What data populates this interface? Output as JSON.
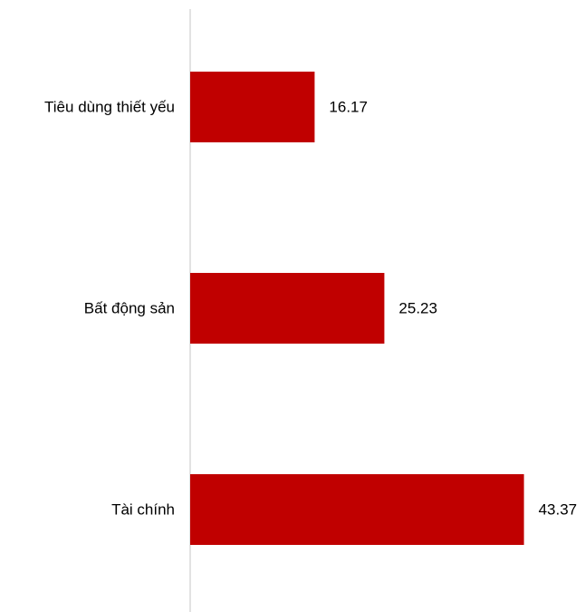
{
  "chart_data": {
    "type": "bar",
    "orientation": "horizontal",
    "categories": [
      "Tiêu dùng thiết yếu",
      "Bất động sản",
      "Tài chính"
    ],
    "values": [
      16.17,
      25.23,
      43.37
    ],
    "data_labels": [
      "16.17",
      "25.23",
      "43.37"
    ],
    "bar_color": "#C00000",
    "axis_color": "#D9D9D9",
    "xlim": [
      0,
      45.3
    ],
    "grid": false,
    "legend": "none"
  }
}
